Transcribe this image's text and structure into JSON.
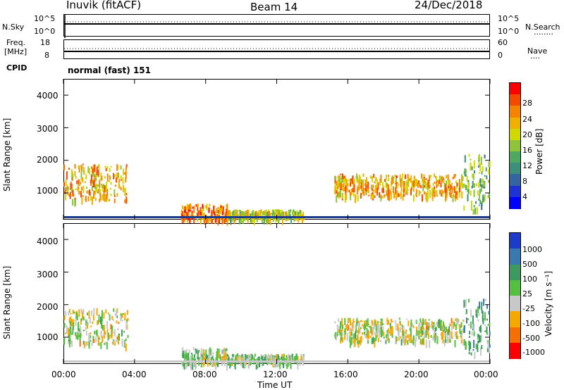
{
  "header": {
    "station": "Inuvik (fitACF)",
    "beam": "Beam 14",
    "date": "24/Dec/2018"
  },
  "nsky_panel": {
    "left_label": "N.Sky",
    "left_ticks": [
      "10^5",
      "10^0"
    ],
    "right_ticks": [
      "10^5",
      "10^0"
    ],
    "right_label": "N.Search",
    "right_legend": "........"
  },
  "freq_panel": {
    "left_label_1": "Freq.",
    "left_label_2": "[MHz]",
    "left_ticks": [
      "18",
      "8"
    ],
    "right_ticks": [
      "60",
      "0"
    ],
    "right_label": "Nave",
    "right_legend": "...."
  },
  "cpid_panel": {
    "label": "CPID",
    "text": "normal (fast) 151"
  },
  "chart_data": [
    {
      "type": "heatmap",
      "title": "",
      "ylabel": "Slant Range [km]",
      "yticks": [
        "4000",
        "3000",
        "2000",
        "1000"
      ],
      "ylim": [
        180,
        4500
      ],
      "colorbar_label": "Power [dB]",
      "colorbar_ticks": [
        "28",
        "24",
        "20",
        "16",
        "12",
        "8",
        "4"
      ],
      "colorbar_colors": [
        "#ff0000",
        "#f44a00",
        "#f68300",
        "#f0b000",
        "#cfd900",
        "#8fc43a",
        "#4ea860",
        "#3d8f7a",
        "#3565a0",
        "#1e32d6",
        "#0000ff"
      ],
      "regions": [
        {
          "x": [
            0.0,
            3.6
          ],
          "y": [
            800,
            1900
          ],
          "level": 0.8
        },
        {
          "x": [
            6.6,
            9.2
          ],
          "y": [
            200,
            700
          ],
          "level": 0.95
        },
        {
          "x": [
            9.2,
            13.5
          ],
          "y": [
            250,
            500
          ],
          "level": 0.6
        },
        {
          "x": [
            15.2,
            22.5
          ],
          "y": [
            900,
            1600
          ],
          "level": 0.85
        },
        {
          "x": [
            22.5,
            24.0
          ],
          "y": [
            500,
            2200
          ],
          "level": 0.4
        }
      ]
    },
    {
      "type": "heatmap",
      "title": "",
      "ylabel": "Slant Range [km]",
      "yticks": [
        "4000",
        "3000",
        "2000",
        "1000"
      ],
      "ylim": [
        180,
        4500
      ],
      "xlabel": "Time UT",
      "xticks": [
        "00:00",
        "04:00",
        "08:00",
        "12:00",
        "16:00",
        "20:00",
        "00:00"
      ],
      "xlim": [
        0,
        24
      ],
      "colorbar_label": "Velocity [m s⁻¹]",
      "colorbar_ticks": [
        "1000",
        "500",
        "100",
        "25",
        "-25",
        "-100",
        "-500",
        "-1000"
      ],
      "colorbar_colors": [
        "#1a3cc8",
        "#3a78b0",
        "#3c9a60",
        "#55c040",
        "#c8c8c8",
        "#f5a800",
        "#f57000",
        "#ff0000"
      ],
      "regions": [
        {
          "x": [
            0.0,
            3.6
          ],
          "y": [
            800,
            1900
          ],
          "level": 0.6
        },
        {
          "x": [
            6.6,
            9.2
          ],
          "y": [
            200,
            700
          ],
          "level": 0.5
        },
        {
          "x": [
            9.2,
            13.5
          ],
          "y": [
            250,
            500
          ],
          "level": 0.45
        },
        {
          "x": [
            15.2,
            22.5
          ],
          "y": [
            900,
            1600
          ],
          "level": 0.6
        },
        {
          "x": [
            22.5,
            24.0
          ],
          "y": [
            500,
            2200
          ],
          "level": 0.3
        }
      ]
    }
  ]
}
